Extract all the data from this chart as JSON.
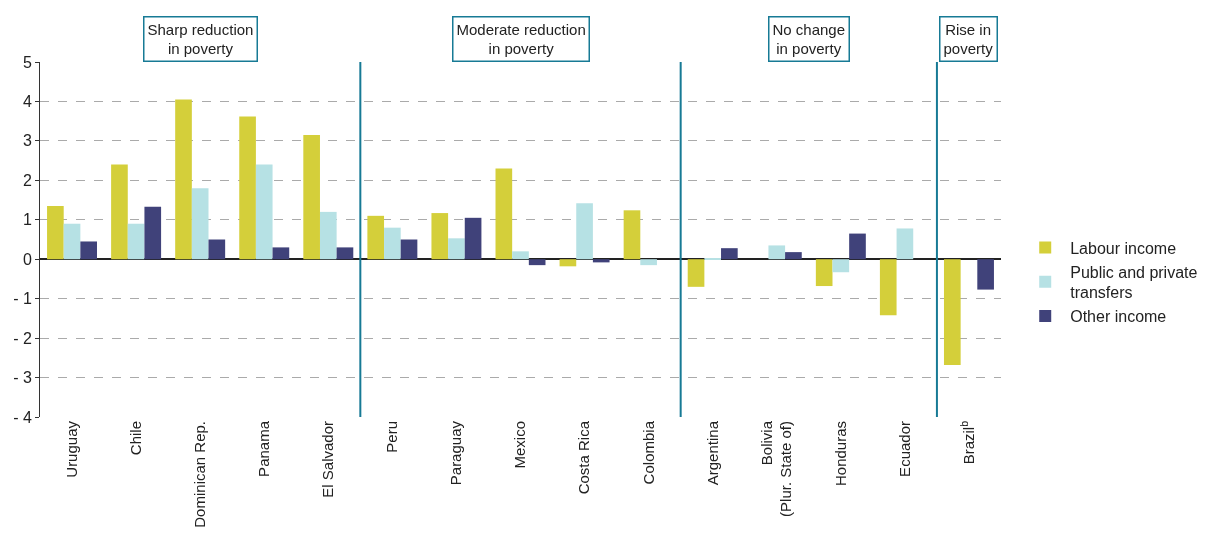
{
  "chart_data": {
    "type": "bar",
    "categories": [
      "Uruguay",
      "Chile",
      "Dominican Rep.",
      "Panama",
      "El Salvador",
      "Peru",
      "Paraguay",
      "Mexico",
      "Costa Rica",
      "Colombia",
      "Argentina",
      "Bolivia\n(Plur. State of)",
      "Honduras",
      "Ecuador",
      "Brazil$^{b}$"
    ],
    "series": [
      {
        "name": "Labour income",
        "color": "#d4cf3a",
        "values": [
          1.35,
          2.4,
          4.05,
          3.62,
          3.15,
          1.1,
          1.17,
          2.3,
          -0.18,
          1.24,
          -0.7,
          null,
          -0.68,
          -1.42,
          -2.68
        ]
      },
      {
        "name": "Public and private\ntransfers",
        "color": "#b6e1e4",
        "values": [
          0.9,
          0.9,
          1.8,
          2.4,
          1.2,
          0.8,
          0.53,
          0.2,
          1.42,
          -0.15,
          0.03,
          0.35,
          -0.33,
          0.78,
          null
        ]
      },
      {
        "name": "Other income",
        "color": "#40427a",
        "values": [
          0.45,
          1.33,
          0.5,
          0.3,
          0.3,
          0.5,
          1.05,
          -0.15,
          -0.08,
          null,
          0.28,
          0.18,
          0.65,
          null,
          -0.77
        ]
      }
    ],
    "ylim": [
      -4,
      5
    ],
    "yticks": [
      {
        "value": -4,
        "label": "- 4"
      },
      {
        "value": -3,
        "label": "- 3"
      },
      {
        "value": -2,
        "label": "- 2"
      },
      {
        "value": -1,
        "label": "- 1"
      },
      0,
      1,
      2,
      3,
      4,
      5
    ],
    "annotations": [
      "Sharp reduction\nin poverty",
      "Moderate reduction\nin poverty",
      "No change\nin poverty",
      "Rise in\npoverty"
    ],
    "grid": "y",
    "legend": "right"
  }
}
